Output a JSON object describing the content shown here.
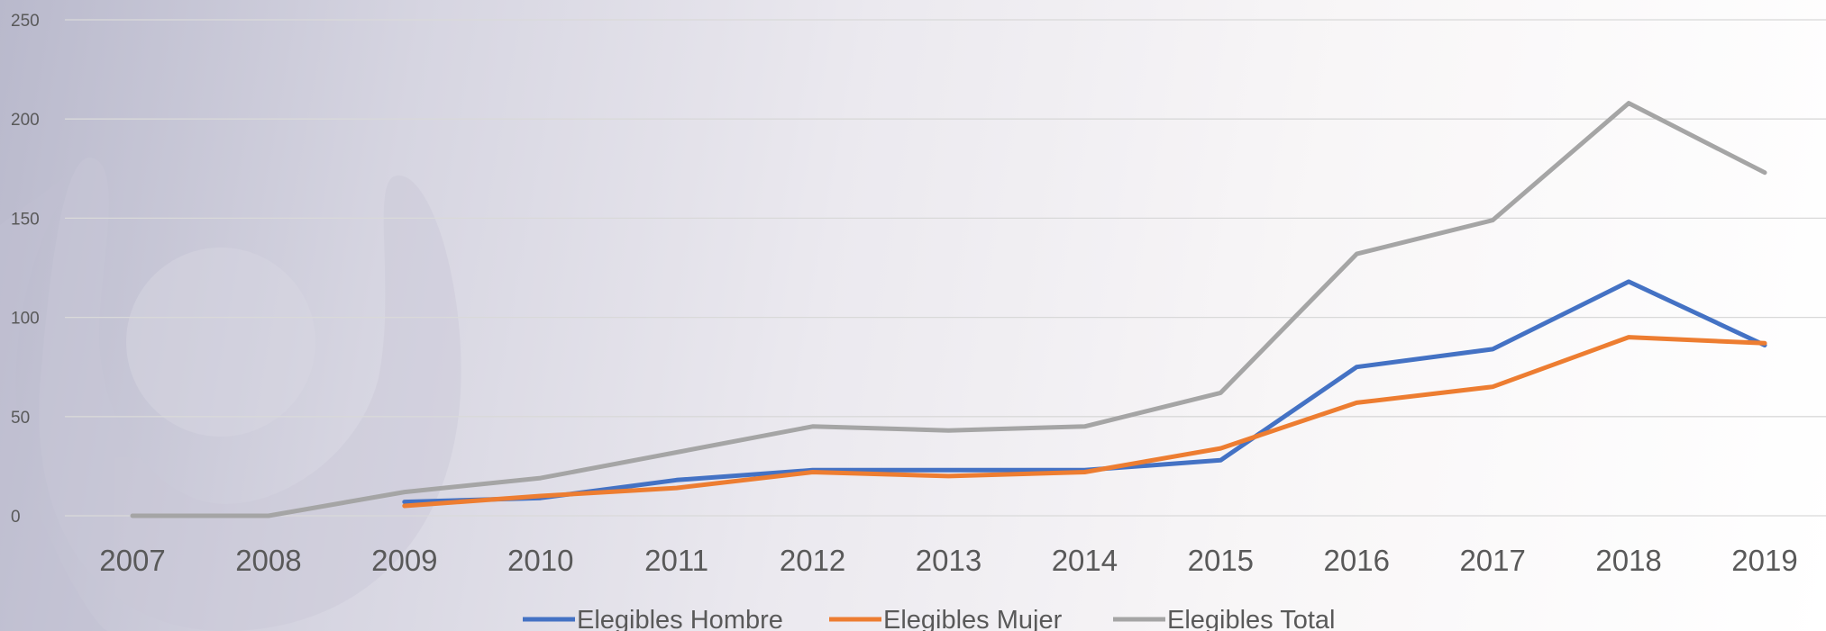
{
  "chart_data": {
    "type": "line",
    "categories": [
      "2007",
      "2008",
      "2009",
      "2010",
      "2011",
      "2012",
      "2013",
      "2014",
      "2015",
      "2016",
      "2017",
      "2018",
      "2019"
    ],
    "series": [
      {
        "name": "Elegibles  Hombre",
        "color": "#4472c4",
        "values": [
          null,
          null,
          7,
          9,
          18,
          23,
          23,
          23,
          28,
          75,
          84,
          118,
          86
        ]
      },
      {
        "name": "Elegibles  Mujer",
        "color": "#ed7d31",
        "values": [
          null,
          null,
          5,
          10,
          14,
          22,
          20,
          22,
          34,
          57,
          65,
          90,
          87
        ]
      },
      {
        "name": "Elegibles  Total",
        "color": "#a5a5a5",
        "values": [
          0,
          0,
          12,
          19,
          32,
          45,
          43,
          45,
          62,
          132,
          149,
          208,
          173
        ]
      }
    ],
    "ylim": [
      0,
      250
    ],
    "yticks": [
      "0",
      "50",
      "100",
      "150",
      "200",
      "250"
    ],
    "grid": true,
    "legend_position": "bottom",
    "title": "",
    "xlabel": "",
    "ylabel": ""
  }
}
